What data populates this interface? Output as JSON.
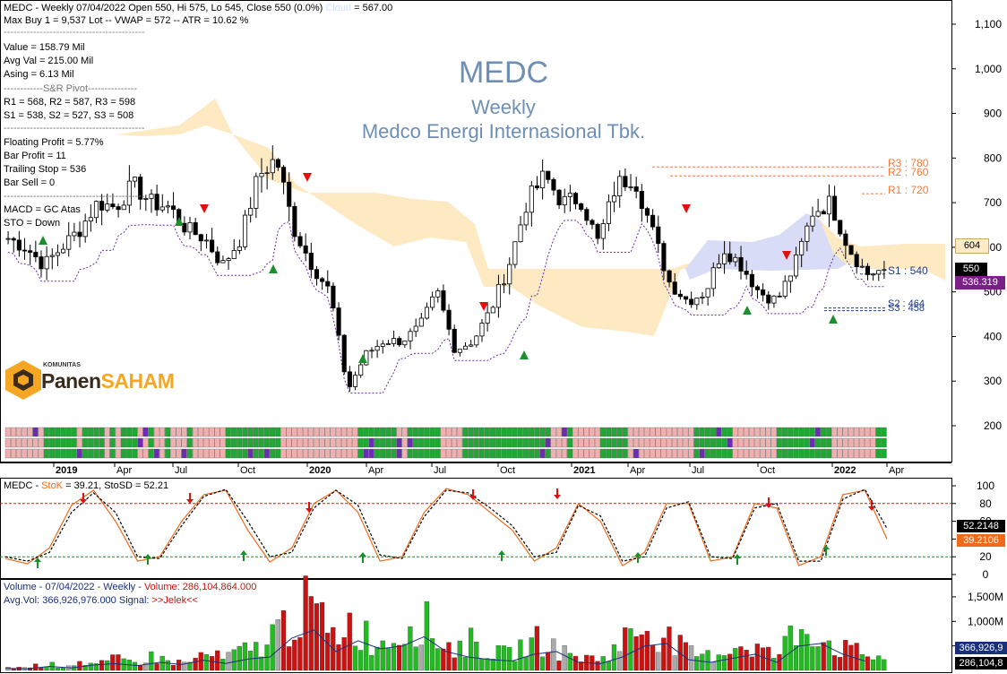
{
  "colors": {
    "cloud": "#fde9c2",
    "cloud_blue": "#d9dcf7",
    "up": "#000000",
    "down": "#000000",
    "buy_arrow": "#1a8f2b",
    "sell_arrow": "#e01010",
    "trail": "#6a2cb0",
    "stok": "#f06a1c",
    "stosd": "#000000",
    "vol_up": "#22bb22",
    "vol_down": "#cc1111",
    "vol_neutral": "#aaaaaa",
    "title": "#6e8fb5",
    "pivot": "#f07b3c",
    "support": "#1f3a8a",
    "close_tag": "#000000",
    "trail_tag": "#7a1f86",
    "cloud_tag": "#fdeac6"
  },
  "header": {
    "line1_prefix": "MEDC - Weekly 07/04/2022 Open 550, Hi 575, Lo 545, Close 550 (0.0%)",
    "line1_cloud": "Cloud",
    "line1_suffix": "= 567.00",
    "line2": "Max Buy 1 = 9,537 Lot   --   VWAP = 572   --   ATR = 10.62 %",
    "value": "Value = 158.79 Mil",
    "avg_val": "Avg Val = 215.00 Mil",
    "asing": "Asing = 6.13 Mil",
    "pivot_title": "S&R Pivot",
    "pivot_r": "R1 = 568, R2 = 587, R3 = 598",
    "pivot_s": "S1 = 538, S2 = 527, S3 = 508",
    "floating_profit": "Floating Profit = 5.77%",
    "bar_profit": "Bar Profit = 11",
    "trailing_stop": "Trailing Stop = 536",
    "bar_sell": "Bar Sell = 0",
    "macd": "MACD =  GC Atas",
    "sto": "STO  =  Down"
  },
  "title": {
    "ticker": "MEDC",
    "period": "Weekly",
    "company": "Medco Energi Internasional Tbk."
  },
  "logo": {
    "small": "KOMUNITAS",
    "part1": "Panen",
    "part2": "SAHAM"
  },
  "levels": {
    "r3": "R3 : 780",
    "r2": "R2 : 760",
    "r1": "R1 : 720",
    "s1": "S1 : 540",
    "s2": "S2 : 464",
    "s3": "S3 : 458"
  },
  "tags": {
    "cloud": "604",
    "close": "550",
    "trail": "536.319",
    "stosd": "52.2148",
    "stok": "39.2106",
    "avgvol": "366,926,9",
    "vol": "286,104,8"
  },
  "price_axis": [
    "1,100",
    "1,000",
    "900",
    "800",
    "700",
    "600",
    "500",
    "400",
    "300",
    "200"
  ],
  "time_axis": [
    "2019",
    "Apr",
    "Jul",
    "Oct",
    "2020",
    "Apr",
    "Jul",
    "Oct",
    "2021",
    "Apr",
    "Jul",
    "Oct",
    "2022",
    "Apr"
  ],
  "stoch": {
    "label_prefix": "MEDC - ",
    "label_stok": "StoK",
    "label_rest": " = 39.21, StoSD = 52.21",
    "axis": [
      "100",
      "80",
      "60",
      "40",
      "20",
      "0"
    ]
  },
  "volume": {
    "line1_prefix": "Volume - 07/04/2022 - Weekly  - ",
    "line1_value": "Volume: 286,104,864.000",
    "line2_prefix": "Avg.Vol: 366,926,976.000   Signal: ",
    "line2_signal": ">>Jelek<<",
    "axis": [
      "1,500M",
      "1,000M",
      "500M"
    ]
  },
  "chart_data": [
    {
      "type": "candlestick",
      "title": "MEDC",
      "ylim": [
        150,
        1150
      ],
      "x_labels": [
        "2019",
        "Apr",
        "Jul",
        "Oct",
        "2020",
        "Apr",
        "Jul",
        "Oct",
        "2021",
        "Apr",
        "Jul",
        "Oct",
        "2022",
        "Apr"
      ],
      "close_approx": [
        620,
        600,
        560,
        600,
        640,
        700,
        690,
        740,
        700,
        690,
        640,
        620,
        560,
        620,
        760,
        800,
        640,
        560,
        500,
        280,
        360,
        390,
        390,
        420,
        500,
        370,
        390,
        460,
        560,
        700,
        760,
        700,
        710,
        610,
        740,
        760,
        640,
        520,
        480,
        500,
        600,
        560,
        500,
        480,
        560,
        680,
        700,
        600,
        540,
        550
      ],
      "last": {
        "open": 550,
        "high": 575,
        "low": 545,
        "close": 550
      },
      "levels": {
        "R3": 780,
        "R2": 760,
        "R1": 720,
        "S1": 540,
        "S2": 464,
        "S3": 458,
        "cloud": 604,
        "trailing_stop": 536.319
      }
    },
    {
      "type": "line",
      "title": "Stochastic",
      "ylim": [
        0,
        100
      ],
      "series": [
        {
          "name": "StoK",
          "values": [
            18,
            12,
            30,
            78,
            95,
            60,
            15,
            20,
            60,
            90,
            95,
            50,
            14,
            30,
            80,
            95,
            70,
            15,
            20,
            70,
            97,
            90,
            70,
            50,
            15,
            30,
            80,
            60,
            10,
            25,
            80,
            80,
            15,
            20,
            80,
            75,
            10,
            20,
            90,
            95,
            40
          ]
        },
        {
          "name": "StoSD",
          "values": [
            20,
            15,
            25,
            70,
            92,
            70,
            20,
            18,
            55,
            88,
            96,
            60,
            20,
            25,
            75,
            95,
            78,
            22,
            18,
            65,
            95,
            92,
            75,
            55,
            20,
            25,
            78,
            66,
            15,
            20,
            75,
            82,
            20,
            18,
            75,
            80,
            15,
            15,
            85,
            96,
            52
          ]
        }
      ],
      "last": {
        "StoK": 39.21,
        "StoSD": 52.21
      },
      "reference_lines": [
        80,
        20
      ]
    },
    {
      "type": "bar",
      "title": "Volume",
      "ylim": [
        0,
        1700
      ],
      "unit": "M",
      "values": [
        80,
        60,
        150,
        90,
        200,
        120,
        250,
        180,
        300,
        220,
        150,
        380,
        260,
        420,
        500,
        900,
        1200,
        1500,
        700,
        1100,
        800,
        600,
        900,
        1250,
        700,
        500,
        650,
        400,
        350,
        600,
        700,
        400,
        300,
        250,
        500,
        900,
        1000,
        700,
        400,
        300,
        450,
        600,
        500,
        300,
        900,
        1000,
        600,
        450,
        350,
        286
      ],
      "last": {
        "volume": 286104864,
        "avg_vol": 366926976
      }
    }
  ]
}
